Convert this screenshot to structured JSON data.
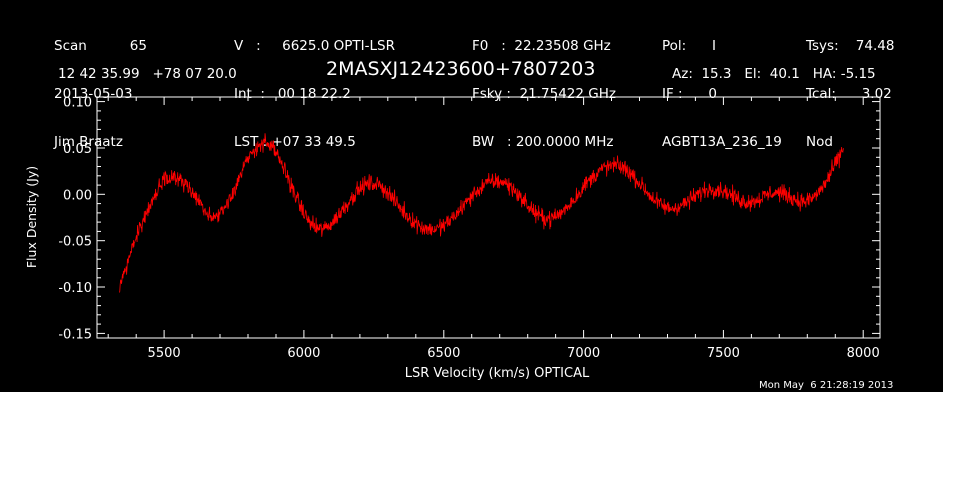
{
  "header": {
    "col1": [
      "Scan          65",
      "2013-05-03",
      "Jim Braatz"
    ],
    "col2": [
      "V   :     6625.0 OPTI-LSR",
      "Int  :   00 18 22.2",
      "LST : +07 33 49.5"
    ],
    "col3": [
      "F0   :  22.23508 GHz",
      "Fsky :  21.75422 GHz",
      "BW   : 200.0000 MHz"
    ],
    "col4": [
      "Pol:      I",
      "IF :      0",
      "AGBT13A_236_19"
    ],
    "col5": [
      "Tsys:    74.48",
      "Tcal:      3.02",
      "Nod"
    ],
    "coords": "12 42 35.99   +78 07 20.0",
    "source": "2MASXJ12423600+7807203",
    "pointing": "Az:  15.3   El:  40.1   HA: -5.15",
    "timestamp": "Mon May  6 21:28:19 2013"
  },
  "chart_data": {
    "type": "line",
    "xlabel": "LSR Velocity (km/s) OPTICAL",
    "ylabel": "Flux Density (Jy)",
    "xlim": [
      5260,
      8060
    ],
    "ylim": [
      -0.155,
      0.105
    ],
    "xticks": [
      5500,
      6000,
      6500,
      7000,
      7500,
      8000
    ],
    "yticks": [
      -0.15,
      -0.1,
      -0.05,
      0.0,
      0.05,
      0.1
    ],
    "ytick_labels": [
      "-0.15",
      "-0.10",
      "-0.05",
      "0.00",
      "0.05",
      "0.10"
    ],
    "series_color": "#ff0000",
    "noise_amplitude": 0.009,
    "x": [
      5340,
      5360,
      5380,
      5400,
      5420,
      5440,
      5460,
      5480,
      5500,
      5520,
      5540,
      5560,
      5580,
      5600,
      5620,
      5640,
      5660,
      5680,
      5700,
      5720,
      5740,
      5760,
      5780,
      5800,
      5820,
      5840,
      5860,
      5880,
      5900,
      5920,
      5940,
      5960,
      5980,
      6000,
      6020,
      6040,
      6060,
      6080,
      6100,
      6120,
      6140,
      6160,
      6180,
      6200,
      6220,
      6240,
      6260,
      6280,
      6300,
      6320,
      6340,
      6360,
      6380,
      6400,
      6420,
      6440,
      6460,
      6480,
      6500,
      6520,
      6540,
      6560,
      6580,
      6600,
      6620,
      6640,
      6660,
      6680,
      6700,
      6720,
      6740,
      6760,
      6780,
      6800,
      6820,
      6840,
      6860,
      6880,
      6900,
      6920,
      6940,
      6960,
      6980,
      7000,
      7020,
      7040,
      7060,
      7080,
      7100,
      7120,
      7140,
      7160,
      7180,
      7200,
      7220,
      7240,
      7260,
      7280,
      7300,
      7320,
      7340,
      7360,
      7380,
      7400,
      7420,
      7440,
      7460,
      7480,
      7500,
      7520,
      7540,
      7560,
      7580,
      7600,
      7620,
      7640,
      7660,
      7680,
      7700,
      7720,
      7740,
      7760,
      7780,
      7800,
      7820,
      7840,
      7860,
      7880,
      7900,
      7920,
      7930
    ],
    "y": [
      -0.105,
      -0.082,
      -0.062,
      -0.046,
      -0.032,
      -0.018,
      -0.004,
      0.007,
      0.016,
      0.02,
      0.019,
      0.015,
      0.009,
      0.002,
      -0.007,
      -0.016,
      -0.022,
      -0.024,
      -0.02,
      -0.012,
      -0.001,
      0.012,
      0.025,
      0.037,
      0.047,
      0.054,
      0.056,
      0.052,
      0.044,
      0.033,
      0.02,
      0.006,
      -0.008,
      -0.02,
      -0.03,
      -0.036,
      -0.038,
      -0.036,
      -0.031,
      -0.024,
      -0.016,
      -0.008,
      0.0,
      0.006,
      0.01,
      0.012,
      0.011,
      0.008,
      0.002,
      -0.005,
      -0.013,
      -0.02,
      -0.026,
      -0.031,
      -0.035,
      -0.037,
      -0.038,
      -0.037,
      -0.034,
      -0.029,
      -0.023,
      -0.016,
      -0.009,
      -0.002,
      0.004,
      0.009,
      0.013,
      0.014,
      0.014,
      0.012,
      0.008,
      0.002,
      -0.005,
      -0.012,
      -0.018,
      -0.023,
      -0.026,
      -0.026,
      -0.024,
      -0.02,
      -0.014,
      -0.007,
      0.0,
      0.008,
      0.015,
      0.021,
      0.026,
      0.029,
      0.031,
      0.031,
      0.029,
      0.025,
      0.019,
      0.012,
      0.005,
      -0.002,
      -0.008,
      -0.012,
      -0.015,
      -0.015,
      -0.013,
      -0.01,
      -0.006,
      -0.002,
      0.002,
      0.005,
      0.006,
      0.006,
      0.004,
      0.001,
      -0.003,
      -0.006,
      -0.008,
      -0.008,
      -0.006,
      -0.003,
      0.0,
      0.002,
      0.002,
      0.0,
      -0.003,
      -0.006,
      -0.008,
      -0.007,
      -0.004,
      0.002,
      0.01,
      0.02,
      0.032,
      0.044,
      0.05
    ]
  }
}
